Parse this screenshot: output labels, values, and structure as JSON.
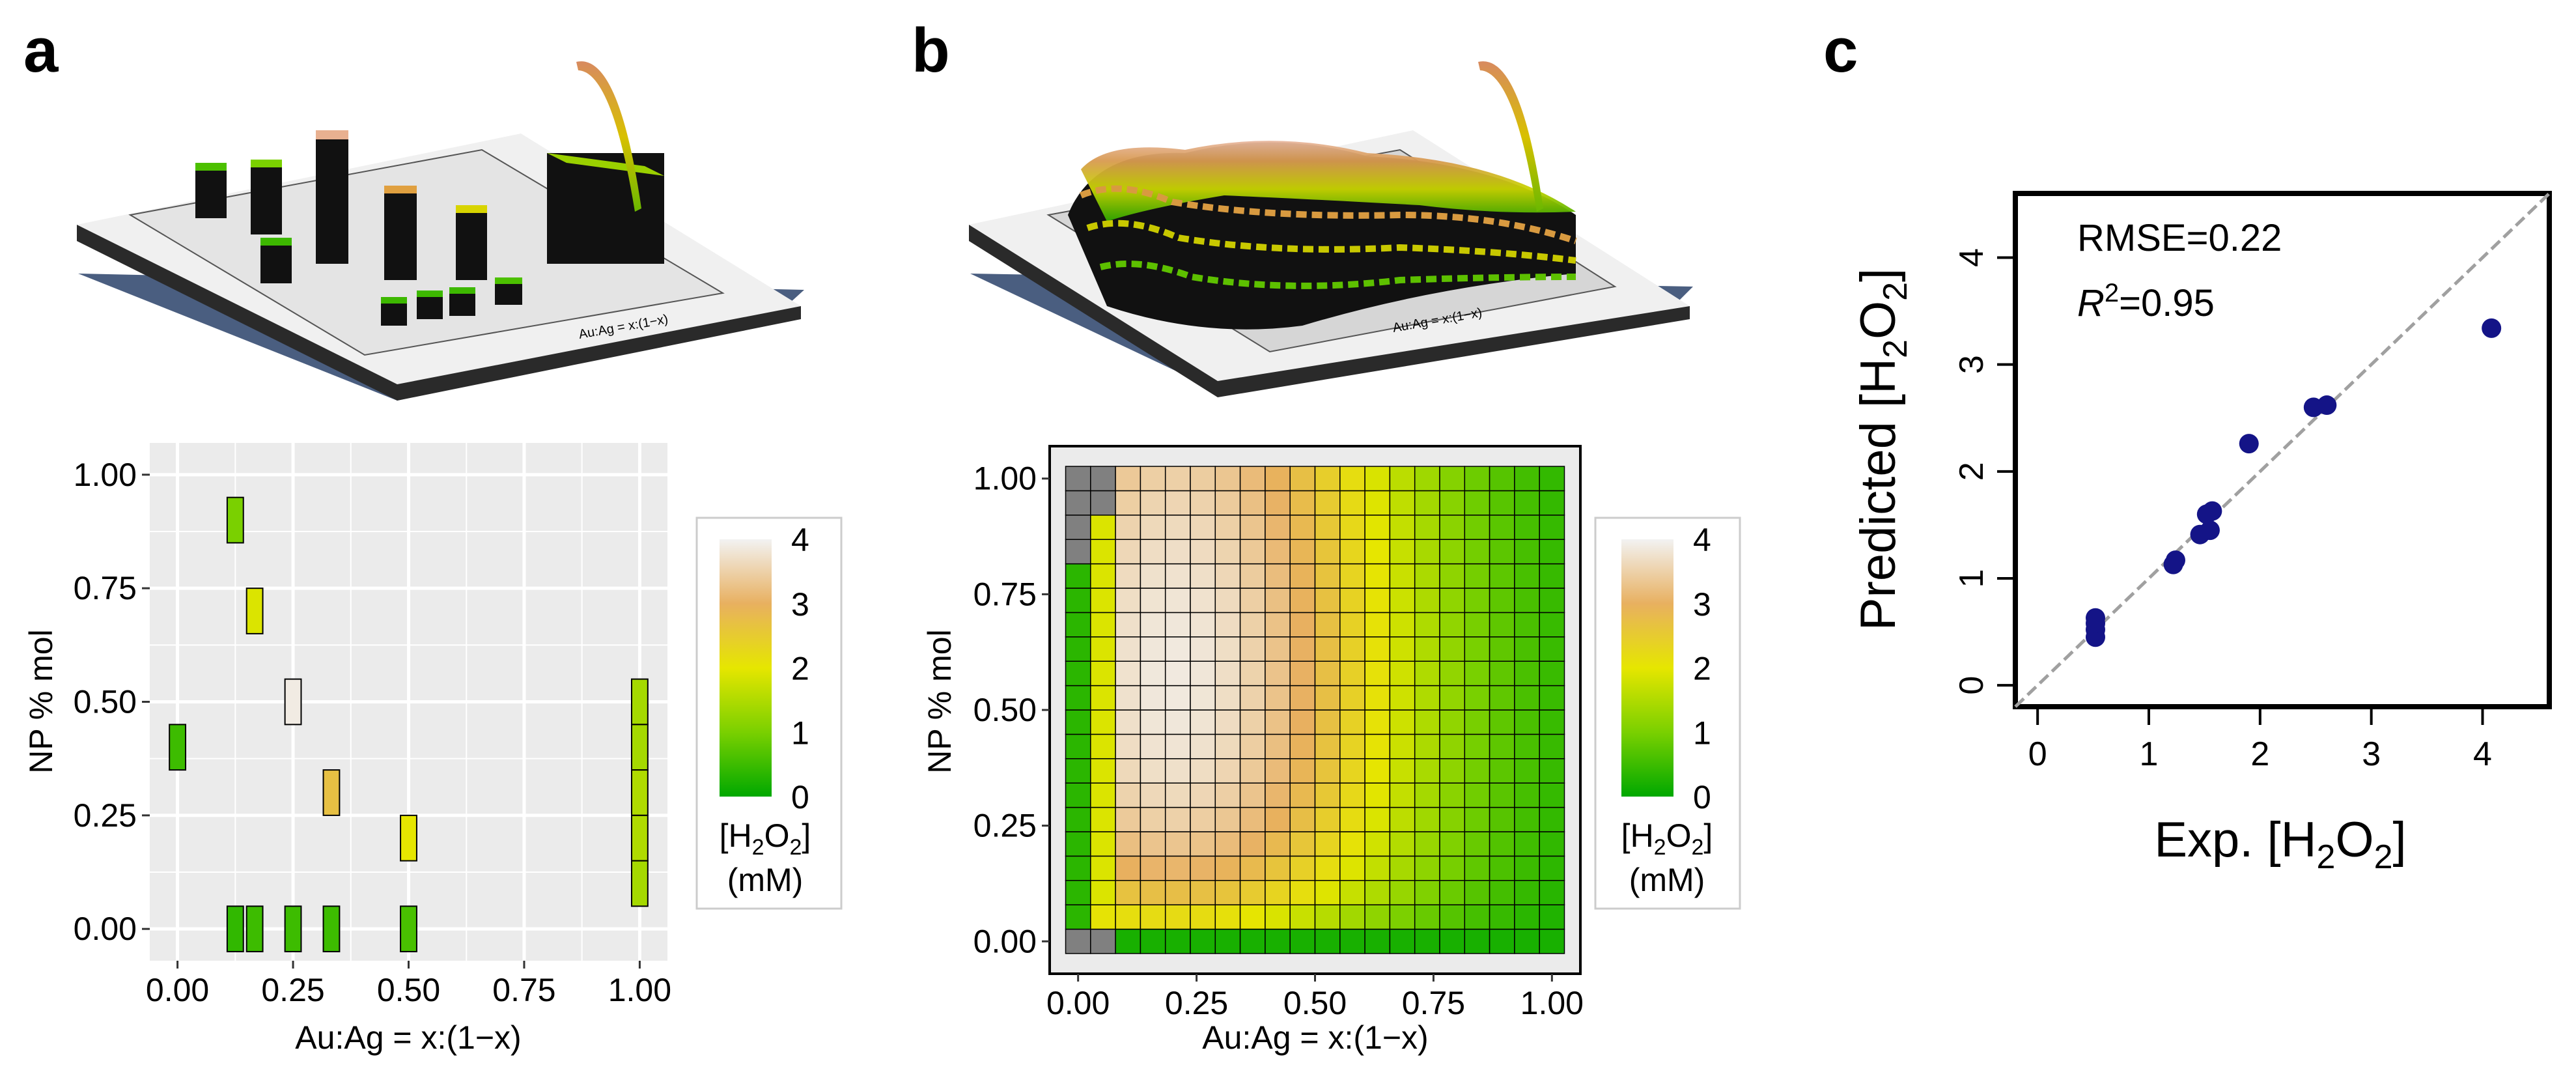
{
  "panels": {
    "a": {
      "label": "a"
    },
    "b": {
      "label": "b"
    },
    "c": {
      "label": "c"
    }
  },
  "colors": {
    "scale": [
      "#00A800",
      "#7AD000",
      "#E6E600",
      "#E8B060",
      "#F2F2F2"
    ],
    "panel_bg": "#EBEBEB",
    "grid": "#FFFFFF",
    "na_cell": "#808080",
    "scatter_point": "#141487",
    "base_plate": "#4A5E80"
  },
  "chart_data": [
    {
      "id": "a-top",
      "type": "bar3d",
      "description_label": "3D rendering of panel a heatmap",
      "axis_label": "Au:Ag = x:(1−x)"
    },
    {
      "id": "a-bottom",
      "type": "heatmap",
      "xlabel": "Au:Ag = x:(1−x)",
      "ylabel": "NP % mol",
      "xlim": [
        -0.06,
        1.06
      ],
      "ylim": [
        -0.07,
        1.07
      ],
      "xticks": [
        "0.00",
        "0.25",
        "0.50",
        "0.75",
        "1.00"
      ],
      "yticks": [
        "0.00",
        "0.25",
        "0.50",
        "0.75",
        "1.00"
      ],
      "tile_width": 0.035,
      "tile_height": 0.1,
      "tiles": [
        {
          "x": 0.0,
          "y": 0.4,
          "value": 0.5
        },
        {
          "x": 0.125,
          "y": 0.9,
          "value": 1.0
        },
        {
          "x": 0.167,
          "y": 0.7,
          "value": 1.9
        },
        {
          "x": 0.25,
          "y": 0.5,
          "value": 3.9
        },
        {
          "x": 0.333,
          "y": 0.3,
          "value": 2.7
        },
        {
          "x": 0.5,
          "y": 0.2,
          "value": 2.0
        },
        {
          "x": 0.125,
          "y": 0.0,
          "value": 0.4
        },
        {
          "x": 0.167,
          "y": 0.0,
          "value": 0.5
        },
        {
          "x": 0.25,
          "y": 0.0,
          "value": 0.5
        },
        {
          "x": 0.333,
          "y": 0.0,
          "value": 0.5
        },
        {
          "x": 0.5,
          "y": 0.0,
          "value": 0.6
        },
        {
          "x": 1.0,
          "y": 0.5,
          "value": 1.4
        },
        {
          "x": 1.0,
          "y": 0.4,
          "value": 1.4
        },
        {
          "x": 1.0,
          "y": 0.3,
          "value": 1.5
        },
        {
          "x": 1.0,
          "y": 0.2,
          "value": 1.5
        },
        {
          "x": 1.0,
          "y": 0.1,
          "value": 1.4
        }
      ],
      "legend": {
        "ticks": [
          "0",
          "1",
          "2",
          "3",
          "4"
        ],
        "range": [
          0,
          4
        ],
        "title_line1": "[H2O2]",
        "title_line2": "(mM)"
      }
    },
    {
      "id": "b-top",
      "type": "surface3d",
      "description_label": "3D rendering of panel b heatmap",
      "axis_label": "Au:Ag = x:(1−x)"
    },
    {
      "id": "b-bottom",
      "type": "heatmap",
      "xlabel": "Au:Ag = x:(1−x)",
      "ylabel": "NP % mol",
      "xlim": [
        -0.06,
        1.06
      ],
      "ylim": [
        -0.07,
        1.07
      ],
      "xticks": [
        "0.00",
        "0.25",
        "0.50",
        "0.75",
        "1.00"
      ],
      "yticks": [
        "0.00",
        "0.25",
        "0.50",
        "0.75",
        "1.00"
      ],
      "grid_nx": 20,
      "grid_ny": 20,
      "note": "predicted values over a 20 x 20 grid; x=0 columns at y<0.1 and y>0.9 are missing (grey)",
      "model": {
        "x_peak": 0.2,
        "peak_value": 3.9
      },
      "legend": {
        "ticks": [
          "0",
          "1",
          "2",
          "3",
          "4"
        ],
        "range": [
          0,
          4
        ],
        "title_line1": "[H2O2]",
        "title_line2": "(mM)"
      }
    },
    {
      "id": "c",
      "type": "scatter",
      "xlabel": "Exp. [H2O2]",
      "ylabel": "Predicted [H2O2]",
      "xlim": [
        -0.2,
        4.6
      ],
      "ylim": [
        -0.2,
        4.6
      ],
      "xticks": [
        0,
        1,
        2,
        3,
        4
      ],
      "yticks": [
        0,
        1,
        2,
        3,
        4
      ],
      "rmse_label": "RMSE=0.22",
      "r2_value": "=0.95",
      "r2_symbol": "R",
      "reference_line": "y = x",
      "points": [
        {
          "x": 0.52,
          "y": 0.45
        },
        {
          "x": 0.52,
          "y": 0.52
        },
        {
          "x": 0.52,
          "y": 0.58
        },
        {
          "x": 0.52,
          "y": 0.63
        },
        {
          "x": 1.22,
          "y": 1.13
        },
        {
          "x": 1.24,
          "y": 1.17
        },
        {
          "x": 1.46,
          "y": 1.41
        },
        {
          "x": 1.52,
          "y": 1.6
        },
        {
          "x": 1.55,
          "y": 1.45
        },
        {
          "x": 1.57,
          "y": 1.63
        },
        {
          "x": 1.9,
          "y": 2.26
        },
        {
          "x": 2.48,
          "y": 2.6
        },
        {
          "x": 2.6,
          "y": 2.62
        },
        {
          "x": 4.08,
          "y": 3.34
        }
      ]
    }
  ]
}
